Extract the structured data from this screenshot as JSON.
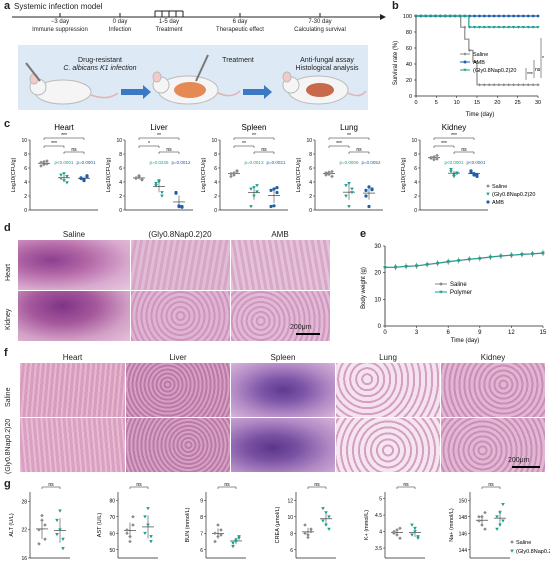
{
  "panel_a": {
    "label": "a",
    "title": "Systemic infection model",
    "timeline": [
      {
        "day": "−3 day",
        "event": "Immune suppression"
      },
      {
        "day": "0 day",
        "event": "Infection"
      },
      {
        "day": "1-5 day",
        "event": "Treatment"
      },
      {
        "day": "6 day",
        "event": "Therapeutic effect"
      },
      {
        "day": "7-30 day",
        "event": "Calculating survival"
      }
    ],
    "steps": [
      {
        "line1": "Drug-resistant",
        "line2": "C. albicans K1 infection"
      },
      {
        "line1": "Treatment",
        "line2": ""
      },
      {
        "line1": "Anti-fungal assay",
        "line2": "Histological analysis"
      }
    ]
  },
  "panel_b": {
    "label": "b",
    "ylabel": "Survival rate (%)",
    "xlabel": "Time (day)",
    "legend": [
      "Saline",
      "AMB",
      "(Gly0.8Nap0.2)20"
    ],
    "sig": [
      "***",
      "ns",
      "*"
    ],
    "colors": {
      "saline": "#8a8a8a",
      "amb": "#1f5fa8",
      "polymer": "#1e9e8c"
    }
  },
  "panel_c": {
    "label": "c",
    "ylabel": "Log10(CFU/g)",
    "ylabel_kidney": "Log10(CFU/g)",
    "organs": [
      {
        "name": "Heart",
        "p1": "p<0.0001",
        "p2": "p=0.0001",
        "sig": [
          "***",
          "***",
          "ns"
        ]
      },
      {
        "name": "Liver",
        "p1": "p=0.0245",
        "p2": "p=0.0012",
        "sig": [
          "**",
          "*",
          "ns"
        ]
      },
      {
        "name": "Spleen",
        "p1": "p=0.0013",
        "p2": "p=0.0021",
        "sig": [
          "**",
          "**",
          "ns"
        ]
      },
      {
        "name": "Lung",
        "p1": "p=0.0006",
        "p2": "p=0.0052",
        "sig": [
          "**",
          "***",
          "ns"
        ]
      },
      {
        "name": "Kidney",
        "p1": "p<0.0001",
        "p2": "p<0.0001",
        "sig": [
          "***",
          "***",
          "ns"
        ]
      }
    ],
    "legend": [
      "Saline",
      "(Gly0.8Nap0.2)20",
      "AMB"
    ]
  },
  "panel_d": {
    "label": "d",
    "cols": [
      "Saline",
      "(Gly0.8Nap0.2)20",
      "AMB"
    ],
    "rows": [
      "Heart",
      "Kidney"
    ],
    "scale": "200μm"
  },
  "panel_e": {
    "label": "e",
    "ylabel": "Body weight (g)",
    "xlabel": "Time (day)",
    "legend": [
      "Saline",
      "Polymer"
    ]
  },
  "panel_f": {
    "label": "f",
    "cols": [
      "Heart",
      "Liver",
      "Spleen",
      "Lung",
      "Kidney"
    ],
    "rows": [
      "Saline",
      "(Gly0.8Nap0.2)20"
    ],
    "scale": "200μm"
  },
  "panel_g": {
    "label": "g",
    "plots": [
      {
        "ylabel": "ALT (U/L)",
        "sig": "ns"
      },
      {
        "ylabel": "AST (U/L)",
        "sig": "ns"
      },
      {
        "ylabel": "BUN (mmol/L)",
        "sig": "ns"
      },
      {
        "ylabel": "CREA (μmol/L)",
        "sig": "ns"
      },
      {
        "ylabel": "K+ (mmol/L)",
        "sig": "ns"
      },
      {
        "ylabel": "Na+ (mmol/L)",
        "sig": "ns"
      }
    ],
    "legend": [
      "Saline",
      "(Gly0.8Nap0.2)20"
    ]
  },
  "chart_data": [
    {
      "type": "line",
      "panel": "b",
      "xlabel": "Time (day)",
      "ylabel": "Survival rate (%)",
      "xlim": [
        0,
        30
      ],
      "ylim": [
        0,
        100
      ],
      "xticks": [
        0,
        5,
        10,
        15,
        20,
        25,
        30
      ],
      "yticks": [
        0,
        20,
        40,
        60,
        80,
        100
      ],
      "series": [
        {
          "name": "Saline",
          "x": [
            0,
            10,
            11,
            12,
            13,
            14,
            15,
            30
          ],
          "y": [
            100,
            100,
            86,
            71,
            57,
            43,
            14,
            14
          ]
        },
        {
          "name": "AMB",
          "x": [
            0,
            30
          ],
          "y": [
            100,
            100
          ]
        },
        {
          "name": "(Gly0.8Nap0.2)20",
          "x": [
            0,
            12,
            13,
            30
          ],
          "y": [
            100,
            100,
            86,
            86
          ]
        }
      ]
    },
    {
      "type": "scatter",
      "panel": "c",
      "ylabel": "Log10(CFU/g)",
      "ylim": [
        0,
        10
      ],
      "groups": [
        "Saline",
        "(Gly0.8Nap0.2)20",
        "AMB"
      ],
      "organs": [
        {
          "name": "Heart",
          "values": [
            [
              6.8,
              6.5,
              7.0,
              6.3,
              6.9,
              6.6
            ],
            [
              4.5,
              5.2,
              3.9,
              5.0,
              4.2,
              4.8
            ],
            [
              4.6,
              4.3,
              4.9,
              4.5,
              4.2,
              4.7
            ]
          ]
        },
        {
          "name": "Liver",
          "values": [
            [
              4.5,
              4.8,
              4.3,
              4.6,
              4.9,
              4.4
            ],
            [
              3.8,
              4.2,
              2.5,
              3.5,
              4.0,
              2.0
            ],
            [
              2.4,
              0.5,
              0.5,
              2.5,
              0.6,
              0.4
            ]
          ]
        },
        {
          "name": "Spleen",
          "values": [
            [
              5.2,
              5.0,
              5.6,
              4.8,
              5.3,
              5.5
            ],
            [
              3.0,
              2.0,
              3.5,
              0.5,
              3.2,
              2.6
            ],
            [
              2.8,
              0.6,
              3.2,
              0.5,
              3.0,
              2.5
            ]
          ]
        },
        {
          "name": "Lung",
          "values": [
            [
              5.0,
              5.4,
              4.8,
              5.3,
              5.1,
              5.5
            ],
            [
              3.5,
              0.5,
              3.0,
              2.0,
              3.8,
              2.5
            ],
            [
              2.8,
              0.5,
              3.0,
              2.0,
              3.3,
              2.9
            ]
          ]
        },
        {
          "name": "Kidney",
          "values": [
            [
              7.5,
              7.2,
              7.8,
              7.4,
              7.6,
              7.3
            ],
            [
              5.5,
              5.0,
              5.2,
              5.8,
              4.8,
              5.3
            ],
            [
              5.4,
              5.0,
              4.8,
              5.6,
              5.2,
              5.1
            ]
          ]
        }
      ]
    },
    {
      "type": "line",
      "panel": "e",
      "xlabel": "Time (day)",
      "ylabel": "Body weight (g)",
      "xlim": [
        0,
        15
      ],
      "ylim": [
        0,
        30
      ],
      "xticks": [
        0,
        3,
        6,
        9,
        12,
        15
      ],
      "yticks": [
        0,
        10,
        20,
        30
      ],
      "series": [
        {
          "name": "Saline",
          "x": [
            0,
            1,
            2,
            3,
            4,
            5,
            6,
            7,
            8,
            9,
            10,
            11,
            12,
            13,
            14,
            15
          ],
          "y": [
            22,
            22,
            22.3,
            22.5,
            23,
            23.5,
            24,
            24.5,
            25,
            25.3,
            25.8,
            26.2,
            26.5,
            26.8,
            27,
            27.3
          ]
        },
        {
          "name": "Polymer",
          "x": [
            0,
            1,
            2,
            3,
            4,
            5,
            6,
            7,
            8,
            9,
            10,
            11,
            12,
            13,
            14,
            15
          ],
          "y": [
            22,
            22.1,
            22.4,
            22.6,
            23.1,
            23.6,
            24.2,
            24.6,
            25.1,
            25.4,
            25.9,
            26.3,
            26.6,
            26.9,
            27.1,
            27.4
          ]
        }
      ]
    },
    {
      "type": "scatter",
      "panel": "g",
      "groups": [
        "Saline",
        "(Gly0.8Nap0.2)20"
      ],
      "plots": [
        {
          "ylabel": "ALT (U/L)",
          "yticks": [
            16,
            22,
            28
          ],
          "ylim": [
            16,
            30
          ],
          "values": [
            [
              22,
              25,
              20,
              19,
              24,
              23
            ],
            [
              21,
              26,
              18,
              24,
              22,
              20
            ]
          ]
        },
        {
          "ylabel": "AST (U/L)",
          "yticks": [
            50,
            60,
            70,
            80
          ],
          "ylim": [
            45,
            85
          ],
          "values": [
            [
              60,
              58,
              65,
              62,
              55,
              70
            ],
            [
              60,
              75,
              55,
              70,
              65,
              58
            ]
          ]
        },
        {
          "ylabel": "BUN (mmol/L)",
          "yticks": [
            6,
            7,
            8,
            9
          ],
          "ylim": [
            5.5,
            9.5
          ],
          "values": [
            [
              7.0,
              6.8,
              7.2,
              6.5,
              7.5,
              6.9
            ],
            [
              6.4,
              6.6,
              6.8,
              6.2,
              6.5,
              6.7
            ]
          ]
        },
        {
          "ylabel": "CREA (μmol/L)",
          "yticks": [
            6,
            8,
            10,
            12
          ],
          "ylim": [
            5,
            13
          ],
          "values": [
            [
              8.0,
              7.5,
              8.5,
              9.0,
              7.8,
              8.2
            ],
            [
              9.5,
              10.5,
              8.5,
              11.0,
              9.0,
              10.0
            ]
          ]
        },
        {
          "ylabel": "K+ (mmol/L)",
          "yticks": [
            3.5,
            4.0,
            4.5,
            5.0
          ],
          "ylim": [
            3.2,
            5.2
          ],
          "values": [
            [
              4.0,
              3.9,
              4.1,
              3.95,
              4.05,
              3.8
            ],
            [
              3.9,
              4.1,
              3.8,
              4.2,
              4.0,
              3.85
            ]
          ]
        },
        {
          "ylabel": "Na+ (mmol/L)",
          "yticks": [
            144,
            146,
            148,
            150
          ],
          "ylim": [
            143,
            151
          ],
          "values": [
            [
              148,
              147,
              148.5,
              147.5,
              148,
              146.5
            ],
            [
              148,
              147,
              149.5,
              146.5,
              148.5,
              147.5
            ]
          ]
        }
      ]
    }
  ]
}
